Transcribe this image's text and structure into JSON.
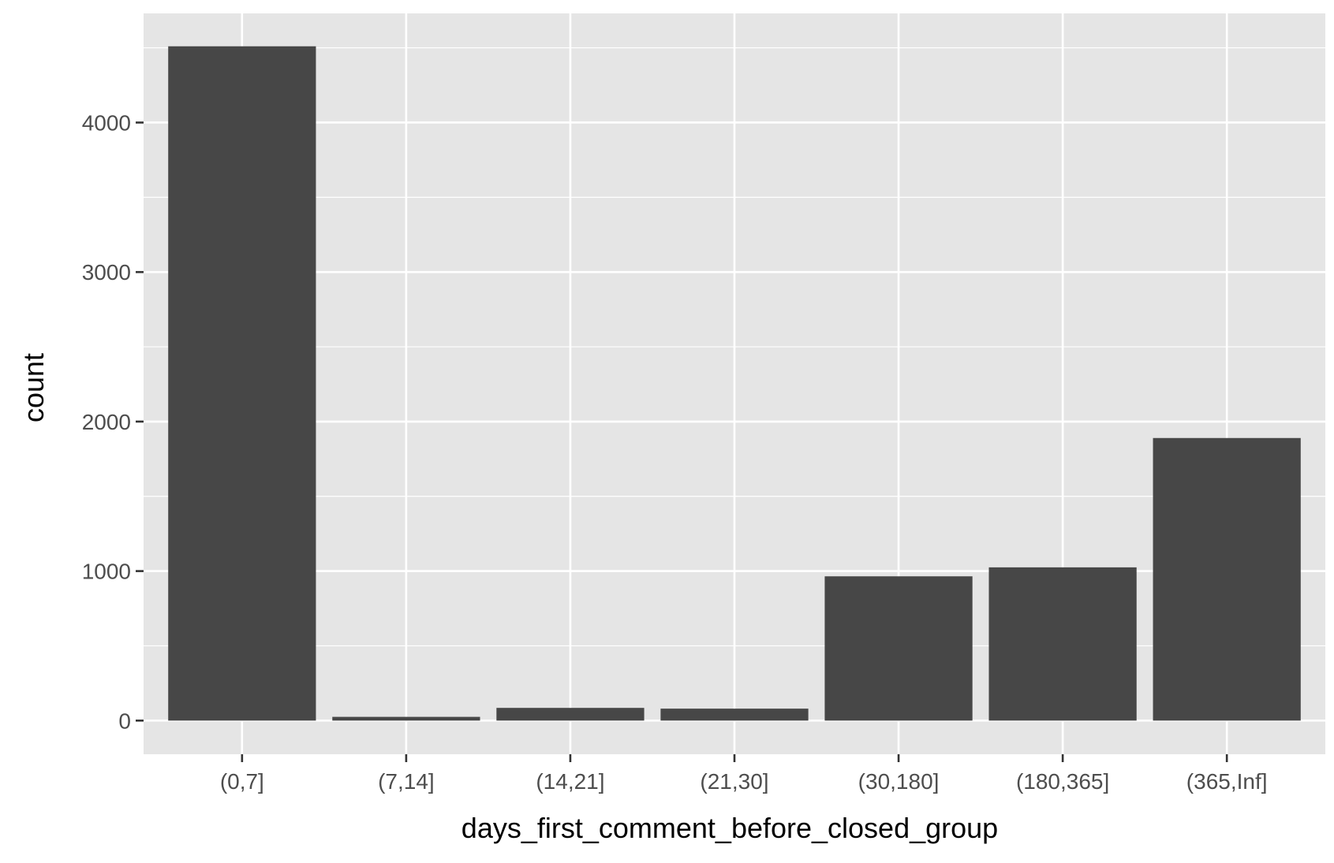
{
  "chart_data": {
    "type": "bar",
    "title": "",
    "xlabel": "days_first_comment_before_closed_group",
    "ylabel": "count",
    "categories": [
      "(0,7]",
      "(7,14]",
      "(14,21]",
      "(21,30]",
      "(30,180]",
      "(180,365]",
      "(365,Inf]"
    ],
    "values": [
      4510,
      25,
      85,
      80,
      965,
      1025,
      1890
    ],
    "ylim": [
      -225,
      4730
    ],
    "yticks": [
      0,
      1000,
      2000,
      3000,
      4000
    ],
    "ytick_labels": [
      "0",
      "1000",
      "2000",
      "3000",
      "4000"
    ],
    "grid": true,
    "legend": "none",
    "colors": {
      "panel": "#e5e5e5",
      "grid": "#ffffff",
      "bar": "#474747",
      "tick": "#333333"
    }
  }
}
